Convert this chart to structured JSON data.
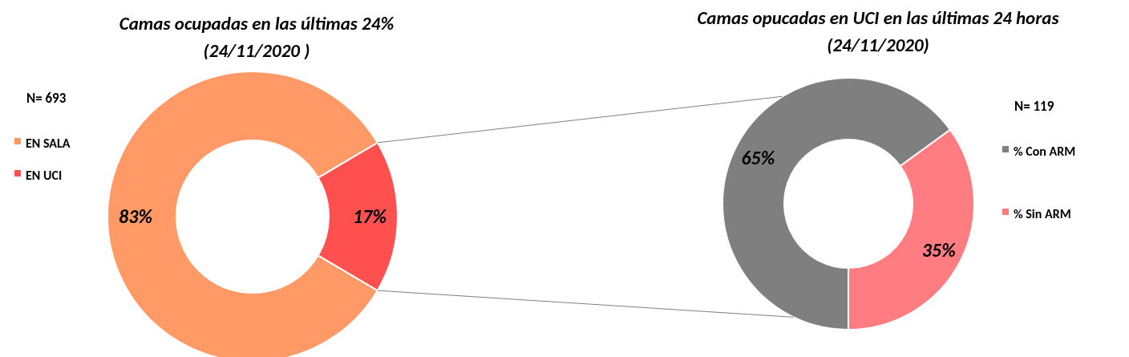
{
  "chart_data": [
    {
      "type": "donut",
      "title": "Camas ocupadas  en las últimas 24%",
      "subtitle": "(24/11/2020 )",
      "categories": [
        "EN SALA",
        "EN UCI"
      ],
      "values": [
        83,
        17
      ],
      "colors": [
        "#ff9966",
        "#ff5050"
      ],
      "value_labels": [
        "83%",
        "17%"
      ],
      "legend": "left",
      "annotations": [
        "N= 693"
      ]
    },
    {
      "type": "donut",
      "title": "Camas opucadas  en UCI en las últimas 24 horas",
      "subtitle": "(24/11/2020)",
      "categories": [
        "% Con ARM",
        "% Sin ARM"
      ],
      "values": [
        65,
        35
      ],
      "colors": [
        "#7f7f7f",
        "#ff7c80"
      ],
      "value_labels": [
        "65%",
        "35%"
      ],
      "legend": "right",
      "annotations": [
        "N= 119"
      ]
    }
  ]
}
